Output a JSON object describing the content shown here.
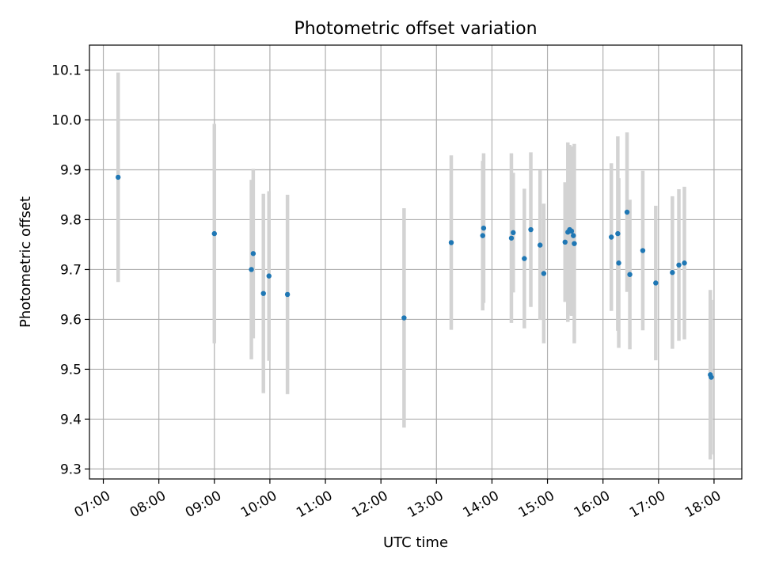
{
  "chart_data": {
    "type": "scatter",
    "title": "Photometric offset variation",
    "xlabel": "UTC time",
    "ylabel": "Photometric offset",
    "x_axis": {
      "type": "time",
      "range": [
        "06:45",
        "18:30"
      ],
      "ticks": [
        "07:00",
        "08:00",
        "09:00",
        "10:00",
        "11:00",
        "12:00",
        "13:00",
        "14:00",
        "15:00",
        "16:00",
        "17:00",
        "18:00"
      ]
    },
    "y_axis": {
      "range": [
        9.28,
        10.15
      ],
      "ticks": [
        "9.3",
        "9.4",
        "9.5",
        "9.6",
        "9.7",
        "9.8",
        "9.9",
        "10.0",
        "10.1"
      ]
    },
    "grid": true,
    "colors": {
      "point": "#1f77b4",
      "errorbar": "#d3d3d3"
    },
    "points": [
      {
        "t": "07:16",
        "y": 9.885,
        "err": 0.21
      },
      {
        "t": "09:00",
        "y": 9.772,
        "err": 0.22
      },
      {
        "t": "09:40",
        "y": 9.7,
        "err": 0.18
      },
      {
        "t": "09:42",
        "y": 9.732,
        "err": 0.17
      },
      {
        "t": "09:53",
        "y": 9.652,
        "err": 0.2
      },
      {
        "t": "09:59",
        "y": 9.687,
        "err": 0.17
      },
      {
        "t": "10:19",
        "y": 9.65,
        "err": 0.2
      },
      {
        "t": "12:25",
        "y": 9.603,
        "err": 0.22
      },
      {
        "t": "13:16",
        "y": 9.754,
        "err": 0.175
      },
      {
        "t": "13:50",
        "y": 9.768,
        "err": 0.15
      },
      {
        "t": "13:51",
        "y": 9.783,
        "err": 0.15
      },
      {
        "t": "14:21",
        "y": 9.763,
        "err": 0.17
      },
      {
        "t": "14:23",
        "y": 9.774,
        "err": 0.12
      },
      {
        "t": "14:35",
        "y": 9.722,
        "err": 0.14
      },
      {
        "t": "14:42",
        "y": 9.78,
        "err": 0.155
      },
      {
        "t": "14:52",
        "y": 9.749,
        "err": 0.15
      },
      {
        "t": "14:56",
        "y": 9.692,
        "err": 0.14
      },
      {
        "t": "15:19",
        "y": 9.755,
        "err": 0.12
      },
      {
        "t": "15:22",
        "y": 9.775,
        "err": 0.18
      },
      {
        "t": "15:24",
        "y": 9.78,
        "err": 0.17
      },
      {
        "t": "15:26",
        "y": 9.777,
        "err": 0.17
      },
      {
        "t": "15:28",
        "y": 9.768,
        "err": 0.16
      },
      {
        "t": "15:29",
        "y": 9.752,
        "err": 0.2
      },
      {
        "t": "16:09",
        "y": 9.765,
        "err": 0.148
      },
      {
        "t": "16:16",
        "y": 9.772,
        "err": 0.195
      },
      {
        "t": "16:17",
        "y": 9.713,
        "err": 0.17
      },
      {
        "t": "16:26",
        "y": 9.815,
        "err": 0.16
      },
      {
        "t": "16:29",
        "y": 9.69,
        "err": 0.15
      },
      {
        "t": "16:43",
        "y": 9.738,
        "err": 0.16
      },
      {
        "t": "16:57",
        "y": 9.673,
        "err": 0.155
      },
      {
        "t": "17:15",
        "y": 9.694,
        "err": 0.153
      },
      {
        "t": "17:22",
        "y": 9.709,
        "err": 0.152
      },
      {
        "t": "17:28",
        "y": 9.713,
        "err": 0.153
      },
      {
        "t": "17:56",
        "y": 9.489,
        "err": 0.17
      },
      {
        "t": "17:57",
        "y": 9.484,
        "err": 0.155
      }
    ]
  }
}
